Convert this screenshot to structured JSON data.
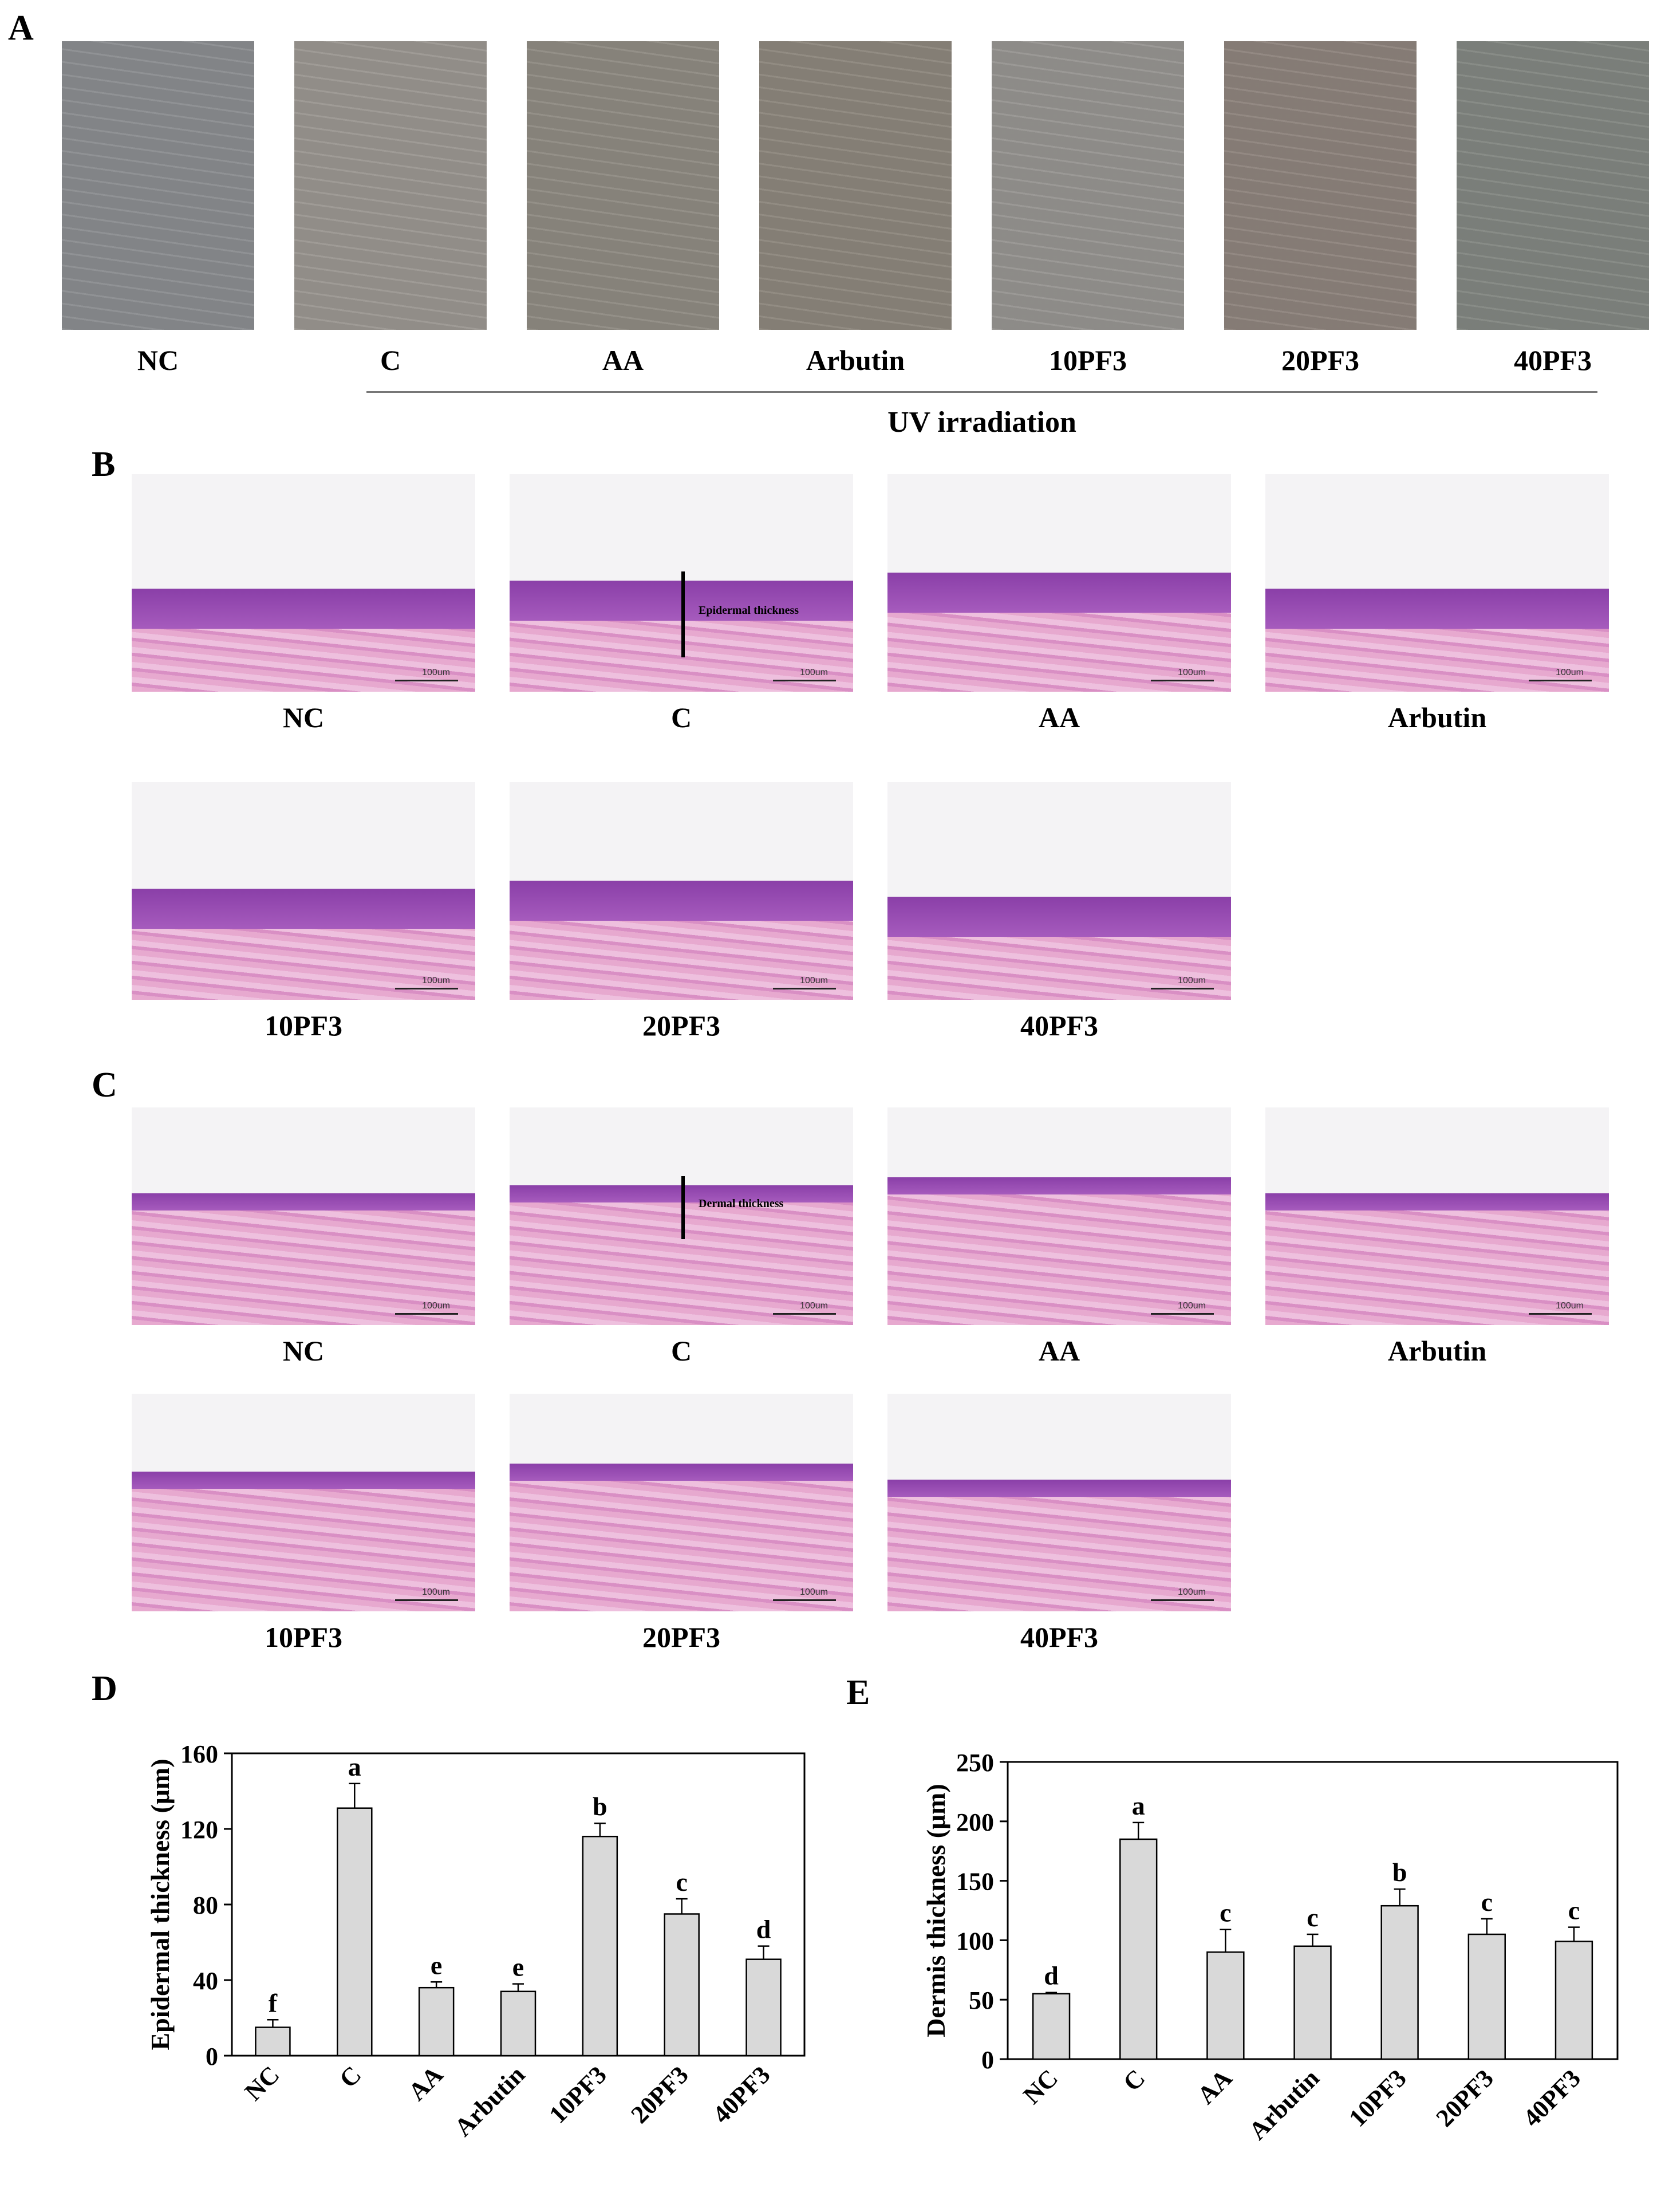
{
  "panelA": {
    "letter": "A",
    "images": [
      {
        "label": "NC",
        "tone": "#8a8c8f"
      },
      {
        "label": "C",
        "tone": "#9a9690"
      },
      {
        "label": "AA",
        "tone": "#8e8a82"
      },
      {
        "label": "Arbutin",
        "tone": "#8c867c"
      },
      {
        "label": "10PF3",
        "tone": "#969490"
      },
      {
        "label": "20PF3",
        "tone": "#8d837c"
      },
      {
        "label": "40PF3",
        "tone": "#828681"
      }
    ],
    "group_label": "UV irradiation"
  },
  "panelB": {
    "letter": "B",
    "labels": [
      "NC",
      "C",
      "AA",
      "Arbutin",
      "10PF3",
      "20PF3",
      "40PF3"
    ],
    "annotation": "Epidermal thickness",
    "scale": "100um"
  },
  "panelC": {
    "letter": "C",
    "labels": [
      "NC",
      "C",
      "AA",
      "Arbutin",
      "10PF3",
      "20PF3",
      "40PF3"
    ],
    "annotation": "Dermal thickness",
    "scale": "100um"
  },
  "chart_data": [
    {
      "panel": "D",
      "type": "bar",
      "categories": [
        "NC",
        "C",
        "AA",
        "Arbutin",
        "10PF3",
        "20PF3",
        "40PF3"
      ],
      "values": [
        15,
        131,
        36,
        34,
        116,
        75,
        51
      ],
      "errors": [
        4,
        13,
        3,
        4,
        7,
        8,
        7
      ],
      "letters": [
        "f",
        "a",
        "e",
        "e",
        "b",
        "c",
        "d"
      ],
      "ylabel": "Epidermal thickness (μm)",
      "ylim": [
        0,
        160
      ],
      "yticks": [
        0,
        40,
        80,
        120,
        160
      ],
      "group_label": "UV irradiation"
    },
    {
      "panel": "E",
      "type": "bar",
      "categories": [
        "NC",
        "C",
        "AA",
        "Arbutin",
        "10PF3",
        "20PF3",
        "40PF3"
      ],
      "values": [
        55,
        185,
        90,
        95,
        129,
        105,
        99
      ],
      "errors": [
        1,
        14,
        19,
        10,
        14,
        13,
        12
      ],
      "letters": [
        "d",
        "a",
        "c",
        "c",
        "b",
        "c",
        "c"
      ],
      "ylabel": "Dermis thickness (μm)",
      "ylim": [
        0,
        250
      ],
      "yticks": [
        0,
        50,
        100,
        150,
        200,
        250
      ],
      "group_label": "UV irradiation"
    }
  ]
}
